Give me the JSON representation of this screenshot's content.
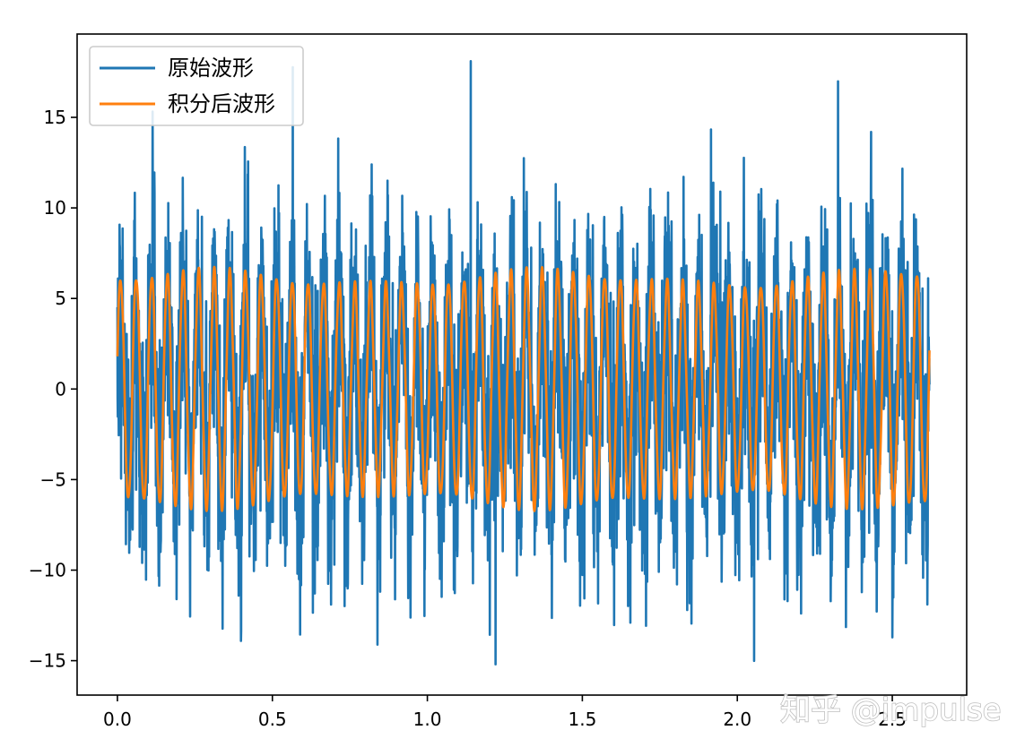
{
  "chart_data": {
    "type": "line",
    "title": "",
    "xlabel": "",
    "ylabel": "",
    "xlim": [
      -0.13,
      2.74
    ],
    "ylim": [
      -16.9,
      19.6
    ],
    "x_ticks": [
      0.0,
      0.5,
      1.0,
      1.5,
      2.0,
      2.5
    ],
    "x_tick_labels": [
      "0.0",
      "0.5",
      "1.0",
      "1.5",
      "2.0",
      "2.5"
    ],
    "y_ticks": [
      15,
      10,
      5,
      0,
      -5,
      -10,
      -15
    ],
    "y_tick_labels": [
      "15",
      "10",
      "5",
      "0",
      "−5",
      "−10",
      "−15"
    ],
    "grid": false,
    "legend_position": "top-left",
    "x_range": [
      0.0,
      2.62
    ],
    "series": [
      {
        "name": "原始波形",
        "color": "#1f77b4",
        "description_values": {
          "typical_range": [
            -10,
            10
          ],
          "max": 18.1,
          "min": -15.2
        }
      },
      {
        "name": "积分后波形",
        "color": "#ff7f0e",
        "description_values": {
          "amplitude": 6.5,
          "cycles": 52
        }
      }
    ]
  },
  "watermark": {
    "text": "知乎 @impulse"
  }
}
